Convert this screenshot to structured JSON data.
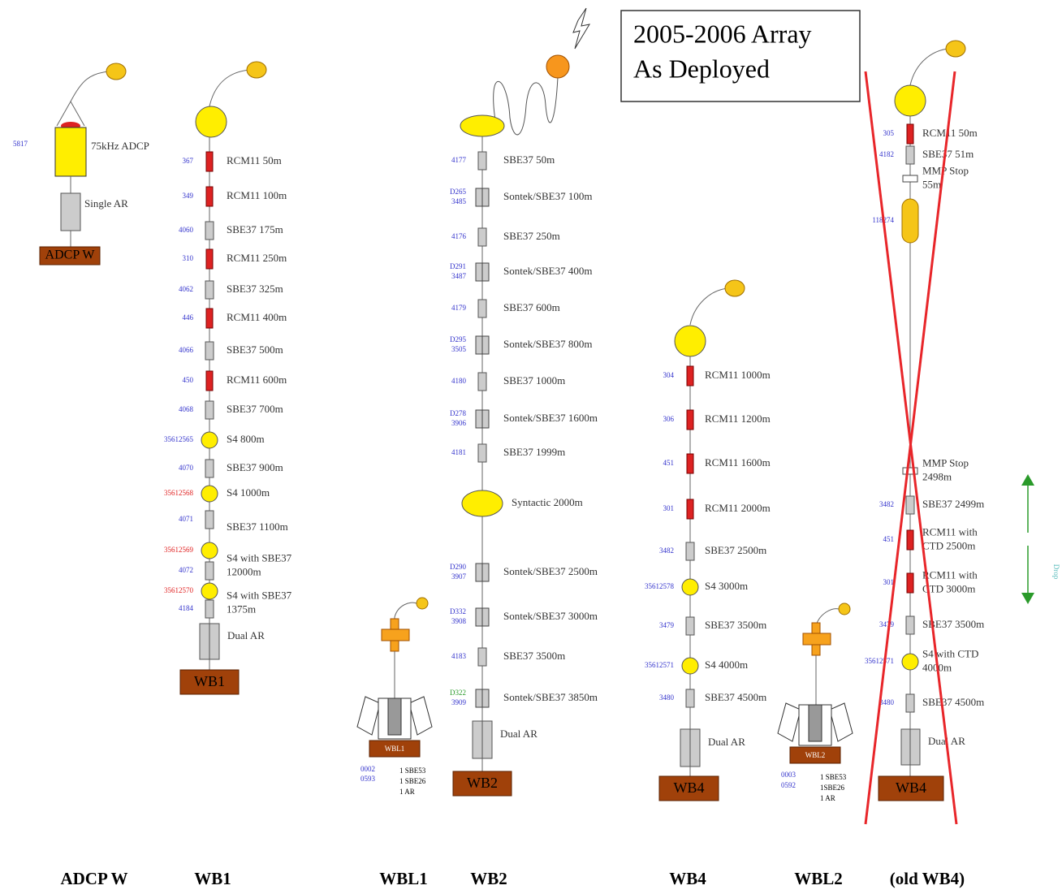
{
  "title": [
    "2005-2006 Array",
    "As Deployed"
  ],
  "drop": "Drop",
  "moorings": [
    {
      "name": "ADCP W",
      "anchor": "ADCP W",
      "serial": "5817",
      "adcp": "75kHz ADCP",
      "release": "Single AR"
    },
    {
      "name": "WB1",
      "anchor": "WB1",
      "release": "Dual AR",
      "items": [
        {
          "serial": [
            "367"
          ],
          "label": [
            "RCM11 50m"
          ]
        },
        {
          "serial": [
            "349"
          ],
          "label": [
            "RCM11 100m"
          ]
        },
        {
          "serial": [
            "4060"
          ],
          "label": [
            "SBE37 175m"
          ]
        },
        {
          "serial": [
            "310"
          ],
          "label": [
            "RCM11 250m"
          ]
        },
        {
          "serial": [
            "4062"
          ],
          "label": [
            "SBE37 325m"
          ]
        },
        {
          "serial": [
            "446"
          ],
          "label": [
            "RCM11 400m"
          ]
        },
        {
          "serial": [
            "4066"
          ],
          "label": [
            "SBE37 500m"
          ]
        },
        {
          "serial": [
            "450"
          ],
          "label": [
            "RCM11 600m"
          ]
        },
        {
          "serial": [
            "4068"
          ],
          "label": [
            "SBE37 700m"
          ]
        },
        {
          "serial": [
            "35612565"
          ],
          "label": [
            "S4 800m"
          ]
        },
        {
          "serial": [
            "4070"
          ],
          "label": [
            "SBE37 900m"
          ]
        },
        {
          "serial": [
            "35612568"
          ],
          "label": [
            "S4 1000m"
          ]
        },
        {
          "serial": [
            "4071"
          ],
          "label": [
            "SBE37 1100m"
          ]
        },
        {
          "serial": [
            "35612569"
          ],
          "label": [
            "S4 with SBE37",
            "12000m"
          ]
        },
        {
          "serial": [
            "4072"
          ],
          "label": []
        },
        {
          "serial": [
            "35612570"
          ],
          "label": [
            "S4 with SBE37",
            "1375m"
          ]
        },
        {
          "serial": [
            "4184"
          ],
          "label": []
        }
      ]
    },
    {
      "name": "WBL1",
      "anchor": "WBL1",
      "serials": [
        "0002",
        "0593"
      ],
      "contents": [
        "1 SBE53",
        "1 SBE26",
        "1 AR"
      ]
    },
    {
      "name": "WB2",
      "anchor": "WB2",
      "release": "Dual AR",
      "items": [
        {
          "serial": [
            "4177"
          ],
          "label": [
            "SBE37 50m"
          ]
        },
        {
          "serial": [
            "D265",
            "3485"
          ],
          "label": [
            "Sontek/SBE37 100m"
          ]
        },
        {
          "serial": [
            "4176"
          ],
          "label": [
            "SBE37 250m"
          ]
        },
        {
          "serial": [
            "D291",
            "3487"
          ],
          "label": [
            "Sontek/SBE37 400m"
          ]
        },
        {
          "serial": [
            "4179"
          ],
          "label": [
            "SBE37 600m"
          ]
        },
        {
          "serial": [
            "D295",
            "3505"
          ],
          "label": [
            "Sontek/SBE37 800m"
          ]
        },
        {
          "serial": [
            "4180"
          ],
          "label": [
            "SBE37 1000m"
          ]
        },
        {
          "serial": [
            "D278",
            "3906"
          ],
          "label": [
            "Sontek/SBE37 1600m"
          ]
        },
        {
          "serial": [
            "4181"
          ],
          "label": [
            "SBE37 1999m"
          ]
        },
        {
          "serial": [],
          "label": [
            "Syntactic 2000m"
          ]
        },
        {
          "serial": [
            "D290",
            "3907"
          ],
          "label": [
            "Sontek/SBE37 2500m"
          ]
        },
        {
          "serial": [
            "D332",
            "3908"
          ],
          "label": [
            "Sontek/SBE37 3000m"
          ]
        },
        {
          "serial": [
            "4183"
          ],
          "label": [
            "SBE37 3500m"
          ]
        },
        {
          "serial": [
            "D322",
            "3909"
          ],
          "label": [
            "Sontek/SBE37 3850m"
          ]
        }
      ]
    },
    {
      "name": "WB4",
      "anchor": "WB4",
      "release": "Dual AR",
      "items": [
        {
          "serial": [
            "304"
          ],
          "label": [
            "RCM11 1000m"
          ]
        },
        {
          "serial": [
            "306"
          ],
          "label": [
            "RCM11 1200m"
          ]
        },
        {
          "serial": [
            "451"
          ],
          "label": [
            "RCM11 1600m"
          ]
        },
        {
          "serial": [
            "301"
          ],
          "label": [
            "RCM11 2000m"
          ]
        },
        {
          "serial": [
            "3482"
          ],
          "label": [
            "SBE37 2500m"
          ]
        },
        {
          "serial": [
            "35612578"
          ],
          "label": [
            "S4 3000m"
          ]
        },
        {
          "serial": [
            "3479"
          ],
          "label": [
            "SBE37 3500m"
          ]
        },
        {
          "serial": [
            "35612571"
          ],
          "label": [
            "S4 4000m"
          ]
        },
        {
          "serial": [
            "3480"
          ],
          "label": [
            "SBE37 4500m"
          ]
        }
      ]
    },
    {
      "name": "WBL2",
      "anchor": "WBL2",
      "serials": [
        "0003",
        "0592"
      ],
      "contents": [
        "1 SBE53",
        "1SBE26",
        "1 AR"
      ]
    },
    {
      "name": "(old WB4)",
      "anchor": "WB4",
      "release": "Dual AR",
      "items": [
        {
          "serial": [
            "305"
          ],
          "label": [
            "RCM11 50m"
          ]
        },
        {
          "serial": [
            "4182"
          ],
          "label": [
            "SBE37 51m"
          ]
        },
        {
          "serial": [],
          "label": [
            "MMP Stop",
            "55m"
          ]
        },
        {
          "serial": [
            "118274"
          ],
          "label": []
        },
        {
          "serial": [],
          "label": [
            "MMP Stop",
            "2498m"
          ]
        },
        {
          "serial": [
            "3482"
          ],
          "label": [
            "SBE37 2499m"
          ]
        },
        {
          "serial": [
            "451"
          ],
          "label": [
            "RCM11 with",
            "CTD 2500m"
          ]
        },
        {
          "serial": [
            "301"
          ],
          "label": [
            "RCM11 with",
            "CTD 3000m"
          ]
        },
        {
          "serial": [
            "3479"
          ],
          "label": [
            "SBE37 3500m"
          ]
        },
        {
          "serial": [
            "35612571"
          ],
          "label": [
            "S4 with CTD",
            "4000m"
          ]
        },
        {
          "serial": [
            "3480"
          ],
          "label": [
            "SBE37 4500m"
          ]
        }
      ]
    }
  ]
}
